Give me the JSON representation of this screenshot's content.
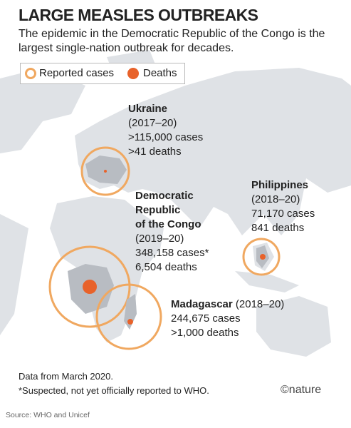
{
  "title": "LARGE MEASLES OUTBREAKS",
  "subtitle": "The epidemic in the Democratic Republic of the Congo is the largest single-nation outbreak for decades.",
  "legend": {
    "cases": "Reported cases",
    "deaths": "Deaths"
  },
  "outbreaks": [
    {
      "name": "Ukraine",
      "period": "(2017–20)",
      "cases": ">115,000 cases",
      "deaths": ">41 deaths"
    },
    {
      "name_lines": [
        "Democratic",
        "Republic",
        "of the Congo"
      ],
      "period": "(2019–20)",
      "cases": "348,158 cases*",
      "deaths": "6,504 deaths"
    },
    {
      "name": "Philippines",
      "period": "(2018–20)",
      "cases": "71,170 cases",
      "deaths": "841 deaths"
    },
    {
      "name": "Madagascar",
      "period": "(2018–20)",
      "cases": "244,675 cases",
      "deaths": ">1,000 deaths"
    }
  ],
  "notes": [
    "Data from March 2020.",
    "*Suspected, not yet officially reported to WHO."
  ],
  "credit": "©nature",
  "source": "Source: WHO and Unicef"
}
